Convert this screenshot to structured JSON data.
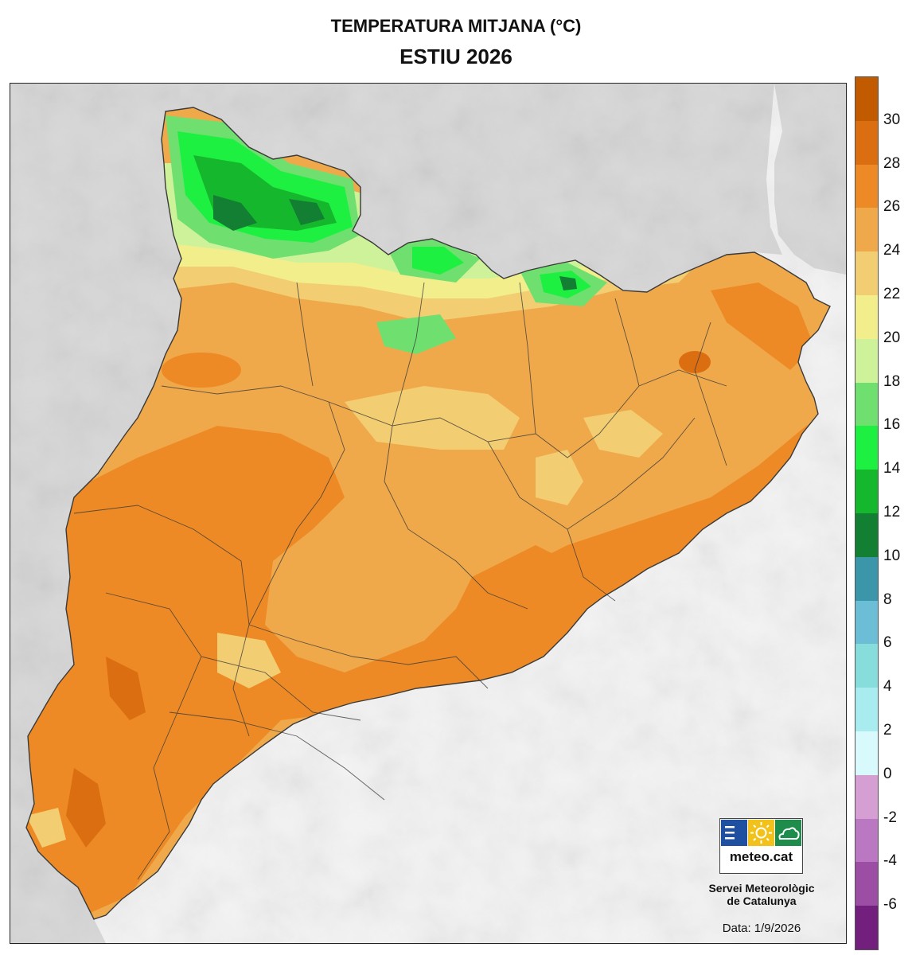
{
  "header": {
    "title": "TEMPERATURA MITJANA (°C)",
    "subtitle": "ESTIU 2026"
  },
  "legend": {
    "unit": "°C",
    "tick_labels": [
      "30",
      "28",
      "26",
      "24",
      "22",
      "20",
      "18",
      "16",
      "14",
      "12",
      "10",
      "8",
      "6",
      "4",
      "2",
      "0",
      "-2",
      "-4",
      "-6"
    ],
    "bins": [
      {
        "min": 30,
        "max": 32,
        "color": "#c25a00"
      },
      {
        "min": 28,
        "max": 30,
        "color": "#dc6e12"
      },
      {
        "min": 26,
        "max": 28,
        "color": "#ed8a25"
      },
      {
        "min": 24,
        "max": 26,
        "color": "#f0a94a"
      },
      {
        "min": 22,
        "max": 24,
        "color": "#f2cd71"
      },
      {
        "min": 20,
        "max": 22,
        "color": "#f3ee8c"
      },
      {
        "min": 18,
        "max": 20,
        "color": "#cdf29a"
      },
      {
        "min": 16,
        "max": 18,
        "color": "#6fe070"
      },
      {
        "min": 14,
        "max": 16,
        "color": "#1ef042"
      },
      {
        "min": 12,
        "max": 14,
        "color": "#15b82c"
      },
      {
        "min": 10,
        "max": 12,
        "color": "#137f32"
      },
      {
        "min": 8,
        "max": 10,
        "color": "#3a96a8"
      },
      {
        "min": 6,
        "max": 8,
        "color": "#6cbdd6"
      },
      {
        "min": 4,
        "max": 6,
        "color": "#86dddc"
      },
      {
        "min": 2,
        "max": 4,
        "color": "#a9ecef"
      },
      {
        "min": 0,
        "max": 2,
        "color": "#d8fafc"
      },
      {
        "min": -2,
        "max": 0,
        "color": "#d59fd4"
      },
      {
        "min": -4,
        "max": -2,
        "color": "#bb78c2"
      },
      {
        "min": -6,
        "max": -4,
        "color": "#9c4ea4"
      },
      {
        "min": -8,
        "max": -6,
        "color": "#731f7e"
      }
    ]
  },
  "map": {
    "colors": {
      "sea": "#f3f3f3",
      "outside_land": "#d7d7d7",
      "border_line": "#3a3a3a"
    }
  },
  "branding": {
    "logo_text": "meteo.cat",
    "org_line1": "Servei Meteorològic",
    "org_line2": "de Catalunya",
    "date": "Data: 1/9/2026",
    "logo_colors": {
      "blue": "#1f4fa0",
      "yellow": "#f2c21a",
      "green": "#1e8c4a"
    }
  }
}
